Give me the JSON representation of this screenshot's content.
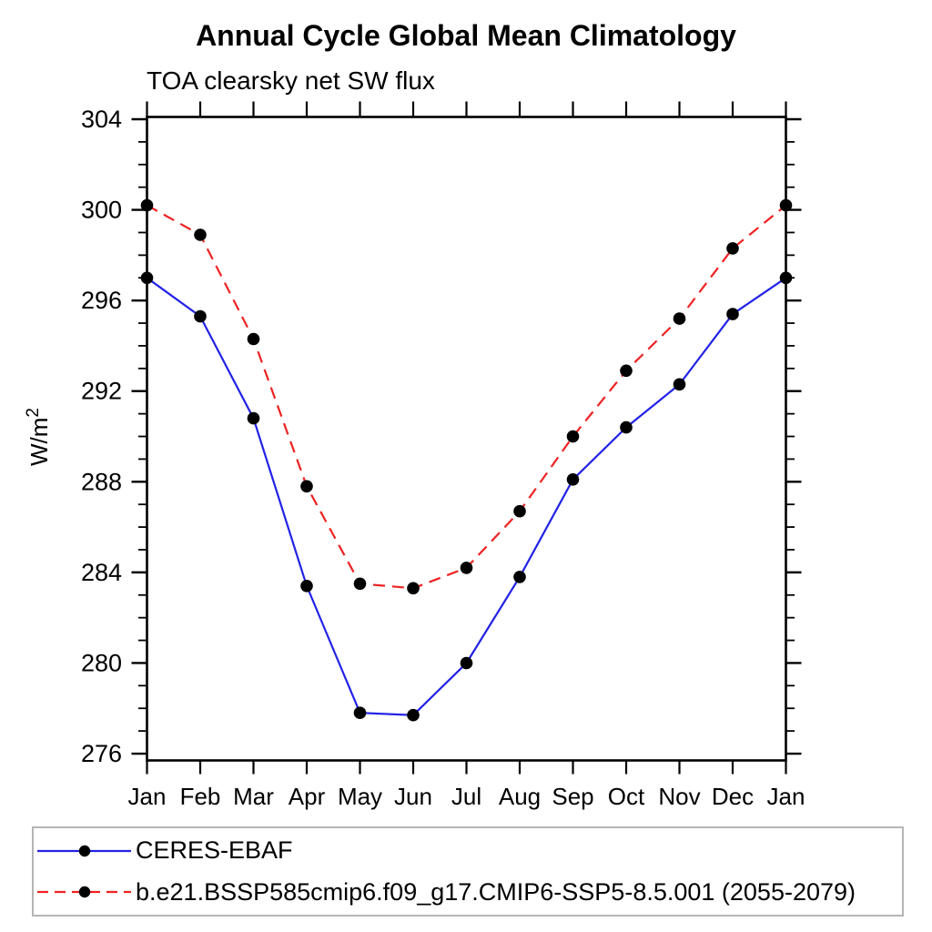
{
  "chart_data": {
    "type": "line",
    "title": "Annual Cycle Global Mean Climatology",
    "subtitle": "TOA clearsky net SW flux",
    "ylabel": "W/m²",
    "xlabel": "",
    "categories": [
      "Jan",
      "Feb",
      "Mar",
      "Apr",
      "May",
      "Jun",
      "Jul",
      "Aug",
      "Sep",
      "Oct",
      "Nov",
      "Dec",
      "Jan"
    ],
    "ylim": [
      275.7,
      304.1
    ],
    "ytick_major_labels": [
      "276",
      "280",
      "284",
      "288",
      "292",
      "296",
      "300",
      "304"
    ],
    "ytick_major_step": 4,
    "ytick_minor_step": 1,
    "grid": false,
    "legend_position": "bottom",
    "axis_color": "#000000",
    "marker_color": "#000000",
    "legend_border_color": "#b5b5b5",
    "series": [
      {
        "name": "CERES-EBAF",
        "color": "#2222e6",
        "line_style": "solid",
        "marker": "filled-circle",
        "values": [
          297.0,
          295.3,
          290.8,
          283.4,
          277.8,
          277.7,
          280.0,
          283.8,
          288.1,
          290.4,
          292.3,
          295.4,
          297.0
        ]
      },
      {
        "name": "b.e21.BSSP585cmip6.f09_g17.CMIP6-SSP5-8.5.001 (2055-2079)",
        "color": "#ee2222",
        "line_style": "dashed",
        "marker": "filled-circle",
        "values": [
          300.2,
          298.9,
          294.3,
          287.8,
          283.5,
          283.3,
          284.2,
          286.7,
          290.0,
          292.9,
          295.2,
          298.3,
          300.2
        ]
      }
    ]
  }
}
